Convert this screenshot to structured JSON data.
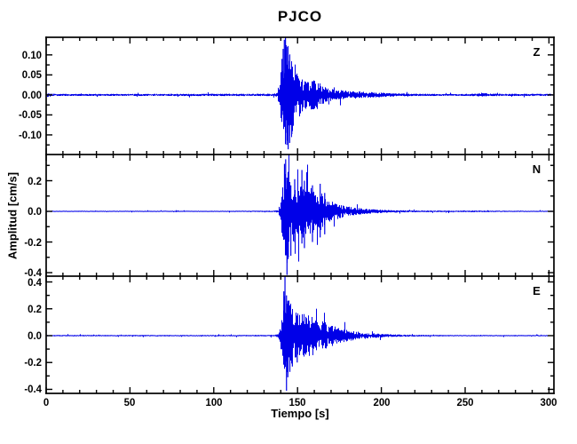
{
  "chart_data": {
    "type": "line",
    "subtype": "seismogram-3-component",
    "title": "PJCO",
    "xlabel": "Tiempo [s]",
    "ylabel": "Amplitud [cm/s]",
    "trace_color": "#0000e8",
    "axis_color": "#000000",
    "background": "#ffffff",
    "x_axis": {
      "lim": [
        0,
        303
      ],
      "major_ticks": [
        {
          "v": 0,
          "label": "0"
        },
        {
          "v": 50,
          "label": "50"
        },
        {
          "v": 100,
          "label": "100"
        },
        {
          "v": 150,
          "label": "150"
        },
        {
          "v": 200,
          "label": "200"
        },
        {
          "v": 250,
          "label": "250"
        },
        {
          "v": 300,
          "label": "300"
        }
      ],
      "minor_step": 10
    },
    "panels": [
      {
        "label": "Z",
        "ylim": [
          -0.149,
          0.144
        ],
        "major_ticks": [
          {
            "v": 0.1,
            "label": "0.10"
          },
          {
            "v": 0.05,
            "label": "0.05"
          },
          {
            "v": 0.0,
            "label": "0.00"
          },
          {
            "v": -0.05,
            "label": "-0.05"
          },
          {
            "v": -0.1,
            "label": "-0.10"
          }
        ],
        "minor_ticks": [
          0.125,
          0.075,
          0.025,
          -0.025,
          -0.075,
          -0.125
        ],
        "trace_start": 0.3,
        "trace_end": 302,
        "seed": 101,
        "envelope": [
          [
            0,
            0.006
          ],
          [
            1.5,
            0.005
          ],
          [
            4,
            0.0031
          ],
          [
            15,
            0.0026
          ],
          [
            45,
            0.0026
          ],
          [
            70,
            0.0027
          ],
          [
            85,
            0.003
          ],
          [
            100,
            0.0028
          ],
          [
            112,
            0.003
          ],
          [
            125,
            0.0028
          ],
          [
            133,
            0.003
          ],
          [
            137.5,
            0.0045
          ],
          [
            139,
            0.035
          ],
          [
            140.5,
            0.08
          ],
          [
            142,
            0.12
          ],
          [
            143.5,
            0.142
          ],
          [
            145,
            0.12
          ],
          [
            146.5,
            0.1
          ],
          [
            148,
            0.08
          ],
          [
            150,
            0.06
          ],
          [
            152,
            0.047
          ],
          [
            154,
            0.038
          ],
          [
            156,
            0.033
          ],
          [
            158,
            0.037
          ],
          [
            160,
            0.04
          ],
          [
            162,
            0.034
          ],
          [
            164,
            0.026
          ],
          [
            166,
            0.02
          ],
          [
            168,
            0.017
          ],
          [
            171,
            0.014
          ],
          [
            174,
            0.0125
          ],
          [
            177,
            0.0115
          ],
          [
            181,
            0.01
          ],
          [
            185,
            0.009
          ],
          [
            189,
            0.008
          ],
          [
            193,
            0.0072
          ],
          [
            197,
            0.0063
          ],
          [
            201,
            0.0055
          ],
          [
            205,
            0.0045
          ],
          [
            210,
            0.0038
          ],
          [
            216,
            0.0032
          ],
          [
            224,
            0.0028
          ],
          [
            236,
            0.0026
          ],
          [
            248,
            0.0027
          ],
          [
            256,
            0.003
          ],
          [
            261,
            0.0048
          ],
          [
            265,
            0.0032
          ],
          [
            274,
            0.0027
          ],
          [
            290,
            0.0028
          ],
          [
            303,
            0.0027
          ]
        ],
        "spikes": [
          [
            142.1,
            -0.07,
            0.138
          ],
          [
            142.8,
            -0.095,
            0.144
          ],
          [
            143.6,
            -0.125,
            0.12
          ],
          [
            144.4,
            -0.136,
            0.1
          ],
          [
            141.4,
            -0.05,
            0.115
          ],
          [
            145.3,
            -0.12,
            0.085
          ],
          [
            146.6,
            -0.098,
            0.07
          ],
          [
            140.7,
            -0.04,
            0.09
          ]
        ]
      },
      {
        "label": "N",
        "ylim": [
          -0.423,
          0.371
        ],
        "major_ticks": [
          {
            "v": 0.2,
            "label": "0.2"
          },
          {
            "v": 0.0,
            "label": "0.0"
          },
          {
            "v": -0.2,
            "label": "-0.2"
          },
          {
            "v": -0.4,
            "label": "-0.4"
          }
        ],
        "minor_ticks": [
          0.3,
          0.1,
          -0.1,
          -0.3
        ],
        "trace_start": 0.3,
        "trace_end": 302,
        "seed": 202,
        "envelope": [
          [
            0,
            0.0035
          ],
          [
            40,
            0.0036
          ],
          [
            80,
            0.0035
          ],
          [
            110,
            0.0037
          ],
          [
            128,
            0.004
          ],
          [
            136,
            0.005
          ],
          [
            138.5,
            0.01
          ],
          [
            139.5,
            0.09
          ],
          [
            141,
            0.19
          ],
          [
            142.5,
            0.3
          ],
          [
            143.8,
            0.35
          ],
          [
            145,
            0.26
          ],
          [
            146.5,
            0.2
          ],
          [
            148,
            0.19
          ],
          [
            149.5,
            0.16
          ],
          [
            151,
            0.14
          ],
          [
            152.5,
            0.22
          ],
          [
            154,
            0.18
          ],
          [
            155.5,
            0.13
          ],
          [
            157,
            0.15
          ],
          [
            158.5,
            0.16
          ],
          [
            160,
            0.12
          ],
          [
            161.5,
            0.1
          ],
          [
            163,
            0.15
          ],
          [
            164.5,
            0.12
          ],
          [
            166,
            0.09
          ],
          [
            168,
            0.08
          ],
          [
            170,
            0.065
          ],
          [
            172.5,
            0.055
          ],
          [
            175,
            0.045
          ],
          [
            178,
            0.037
          ],
          [
            181,
            0.03
          ],
          [
            184,
            0.025
          ],
          [
            188,
            0.02
          ],
          [
            192,
            0.016
          ],
          [
            196,
            0.013
          ],
          [
            200,
            0.011
          ],
          [
            205,
            0.009
          ],
          [
            210,
            0.0075
          ],
          [
            216,
            0.0063
          ],
          [
            224,
            0.0055
          ],
          [
            234,
            0.005
          ],
          [
            246,
            0.0048
          ],
          [
            255,
            0.006
          ],
          [
            262,
            0.005
          ],
          [
            272,
            0.0045
          ],
          [
            285,
            0.004
          ],
          [
            303,
            0.0037
          ]
        ],
        "spikes": [
          [
            143.7,
            -0.415,
            0.22
          ],
          [
            142.9,
            -0.19,
            0.34
          ],
          [
            142.2,
            -0.15,
            0.31
          ],
          [
            144.5,
            -0.3,
            0.24
          ],
          [
            146.0,
            -0.29,
            0.17
          ],
          [
            148.3,
            -0.2,
            0.21
          ],
          [
            152.6,
            -0.21,
            0.27
          ],
          [
            154.1,
            -0.24,
            0.2
          ],
          [
            158.9,
            -0.2,
            0.17
          ],
          [
            163.5,
            -0.17,
            0.18
          ],
          [
            166.2,
            -0.15,
            0.12
          ]
        ]
      },
      {
        "label": "E",
        "ylim": [
          -0.43,
          0.443
        ],
        "major_ticks": [
          {
            "v": 0.4,
            "label": "0.4"
          },
          {
            "v": 0.2,
            "label": "0.2"
          },
          {
            "v": 0.0,
            "label": "0.0"
          },
          {
            "v": -0.2,
            "label": "-0.2"
          },
          {
            "v": -0.4,
            "label": "-0.4"
          }
        ],
        "minor_ticks": [
          0.3,
          0.1,
          -0.1,
          -0.3
        ],
        "trace_start": 0.3,
        "trace_end": 299,
        "seed": 303,
        "envelope": [
          [
            0,
            0.005
          ],
          [
            40,
            0.005
          ],
          [
            80,
            0.005
          ],
          [
            110,
            0.005
          ],
          [
            128,
            0.0052
          ],
          [
            136,
            0.006
          ],
          [
            138.5,
            0.012
          ],
          [
            139.5,
            0.08
          ],
          [
            141,
            0.2
          ],
          [
            142.3,
            0.33
          ],
          [
            143.5,
            0.38
          ],
          [
            145,
            0.28
          ],
          [
            146.5,
            0.22
          ],
          [
            148,
            0.2
          ],
          [
            149.5,
            0.17
          ],
          [
            151,
            0.175
          ],
          [
            153,
            0.16
          ],
          [
            155,
            0.165
          ],
          [
            157,
            0.15
          ],
          [
            159,
            0.155
          ],
          [
            161,
            0.13
          ],
          [
            163,
            0.11
          ],
          [
            165,
            0.115
          ],
          [
            167,
            0.095
          ],
          [
            169,
            0.085
          ],
          [
            172,
            0.07
          ],
          [
            175,
            0.055
          ],
          [
            178,
            0.046
          ],
          [
            181,
            0.038
          ],
          [
            185,
            0.031
          ],
          [
            189,
            0.025
          ],
          [
            193,
            0.02
          ],
          [
            197,
            0.016
          ],
          [
            201,
            0.013
          ],
          [
            206,
            0.01
          ],
          [
            211,
            0.008
          ],
          [
            218,
            0.0068
          ],
          [
            226,
            0.0058
          ],
          [
            238,
            0.005
          ],
          [
            252,
            0.0048
          ],
          [
            268,
            0.0047
          ],
          [
            285,
            0.0046
          ],
          [
            299,
            0.0046
          ]
        ],
        "spikes": [
          [
            142.5,
            -0.2,
            0.443
          ],
          [
            143.4,
            -0.41,
            0.3
          ],
          [
            141.8,
            -0.17,
            0.33
          ],
          [
            144.2,
            -0.31,
            0.26
          ],
          [
            145.4,
            -0.27,
            0.2
          ],
          [
            146.9,
            -0.23,
            0.17
          ],
          [
            149.8,
            -0.2,
            0.15
          ]
        ]
      }
    ]
  }
}
